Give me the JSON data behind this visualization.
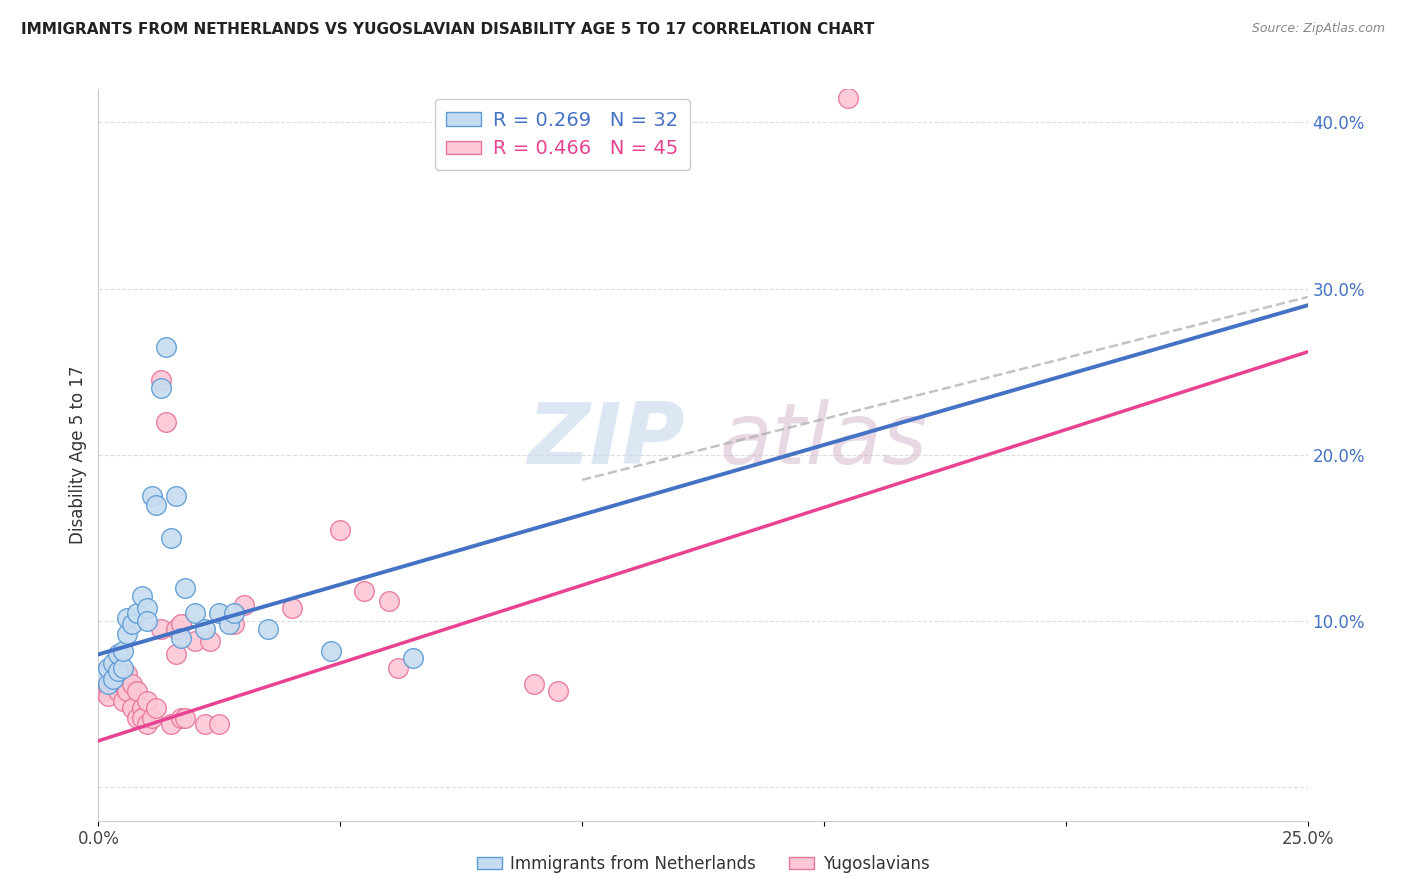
{
  "title": "IMMIGRANTS FROM NETHERLANDS VS YUGOSLAVIAN DISABILITY AGE 5 TO 17 CORRELATION CHART",
  "source": "Source: ZipAtlas.com",
  "ylabel": "Disability Age 5 to 17",
  "x_min": 0.0,
  "x_max": 0.25,
  "y_min": -0.02,
  "y_max": 0.42,
  "x_ticks": [
    0.0,
    0.05,
    0.1,
    0.15,
    0.2,
    0.25
  ],
  "x_tick_labels": [
    "0.0%",
    "",
    "",
    "",
    "",
    "25.0%"
  ],
  "y_ticks_right": [
    0.0,
    0.1,
    0.2,
    0.3,
    0.4
  ],
  "y_tick_labels_right": [
    "",
    "10.0%",
    "20.0%",
    "30.0%",
    "40.0%"
  ],
  "blue_scatter_color_face": "#c6dcf0",
  "blue_scatter_color_edge": "#5b9bd5",
  "pink_scatter_color_face": "#fcc8d5",
  "pink_scatter_color_edge": "#e8769a",
  "blue_line_color": "#4472c4",
  "pink_line_color": "#e84393",
  "gray_dash_color": "#aaaaaa",
  "watermark_zip_color": "#c5d8ec",
  "watermark_atlas_color": "#d4b8cc",
  "blue_points": [
    [
      0.001,
      0.068
    ],
    [
      0.002,
      0.062
    ],
    [
      0.002,
      0.072
    ],
    [
      0.003,
      0.065
    ],
    [
      0.003,
      0.075
    ],
    [
      0.004,
      0.07
    ],
    [
      0.004,
      0.08
    ],
    [
      0.005,
      0.072
    ],
    [
      0.005,
      0.082
    ],
    [
      0.006,
      0.092
    ],
    [
      0.006,
      0.102
    ],
    [
      0.007,
      0.098
    ],
    [
      0.008,
      0.105
    ],
    [
      0.009,
      0.115
    ],
    [
      0.01,
      0.108
    ],
    [
      0.01,
      0.1
    ],
    [
      0.011,
      0.175
    ],
    [
      0.012,
      0.17
    ],
    [
      0.013,
      0.24
    ],
    [
      0.014,
      0.265
    ],
    [
      0.015,
      0.15
    ],
    [
      0.016,
      0.175
    ],
    [
      0.017,
      0.09
    ],
    [
      0.018,
      0.12
    ],
    [
      0.02,
      0.105
    ],
    [
      0.022,
      0.095
    ],
    [
      0.025,
      0.105
    ],
    [
      0.027,
      0.098
    ],
    [
      0.028,
      0.105
    ],
    [
      0.035,
      0.095
    ],
    [
      0.048,
      0.082
    ],
    [
      0.065,
      0.078
    ]
  ],
  "pink_points": [
    [
      0.001,
      0.058
    ],
    [
      0.001,
      0.068
    ],
    [
      0.002,
      0.06
    ],
    [
      0.002,
      0.055
    ],
    [
      0.003,
      0.062
    ],
    [
      0.003,
      0.072
    ],
    [
      0.004,
      0.058
    ],
    [
      0.004,
      0.065
    ],
    [
      0.005,
      0.052
    ],
    [
      0.005,
      0.062
    ],
    [
      0.006,
      0.058
    ],
    [
      0.006,
      0.068
    ],
    [
      0.007,
      0.048
    ],
    [
      0.007,
      0.062
    ],
    [
      0.008,
      0.042
    ],
    [
      0.008,
      0.058
    ],
    [
      0.009,
      0.048
    ],
    [
      0.009,
      0.042
    ],
    [
      0.01,
      0.052
    ],
    [
      0.01,
      0.038
    ],
    [
      0.011,
      0.042
    ],
    [
      0.012,
      0.048
    ],
    [
      0.013,
      0.095
    ],
    [
      0.013,
      0.245
    ],
    [
      0.014,
      0.22
    ],
    [
      0.015,
      0.038
    ],
    [
      0.016,
      0.095
    ],
    [
      0.016,
      0.08
    ],
    [
      0.017,
      0.098
    ],
    [
      0.017,
      0.042
    ],
    [
      0.018,
      0.042
    ],
    [
      0.02,
      0.088
    ],
    [
      0.022,
      0.038
    ],
    [
      0.023,
      0.088
    ],
    [
      0.025,
      0.038
    ],
    [
      0.028,
      0.098
    ],
    [
      0.03,
      0.11
    ],
    [
      0.04,
      0.108
    ],
    [
      0.05,
      0.155
    ],
    [
      0.055,
      0.118
    ],
    [
      0.06,
      0.112
    ],
    [
      0.062,
      0.072
    ],
    [
      0.09,
      0.062
    ],
    [
      0.155,
      0.415
    ],
    [
      0.095,
      0.058
    ]
  ],
  "blue_line": {
    "x0": 0.0,
    "y0": 0.08,
    "x1": 0.25,
    "y1": 0.29
  },
  "pink_line": {
    "x0": 0.0,
    "y0": 0.028,
    "x1": 0.25,
    "y1": 0.262
  },
  "gray_dash_line": {
    "x0": 0.1,
    "y0": 0.185,
    "x1": 0.25,
    "y1": 0.295
  },
  "background_color": "#ffffff",
  "grid_color": "#dddddd"
}
